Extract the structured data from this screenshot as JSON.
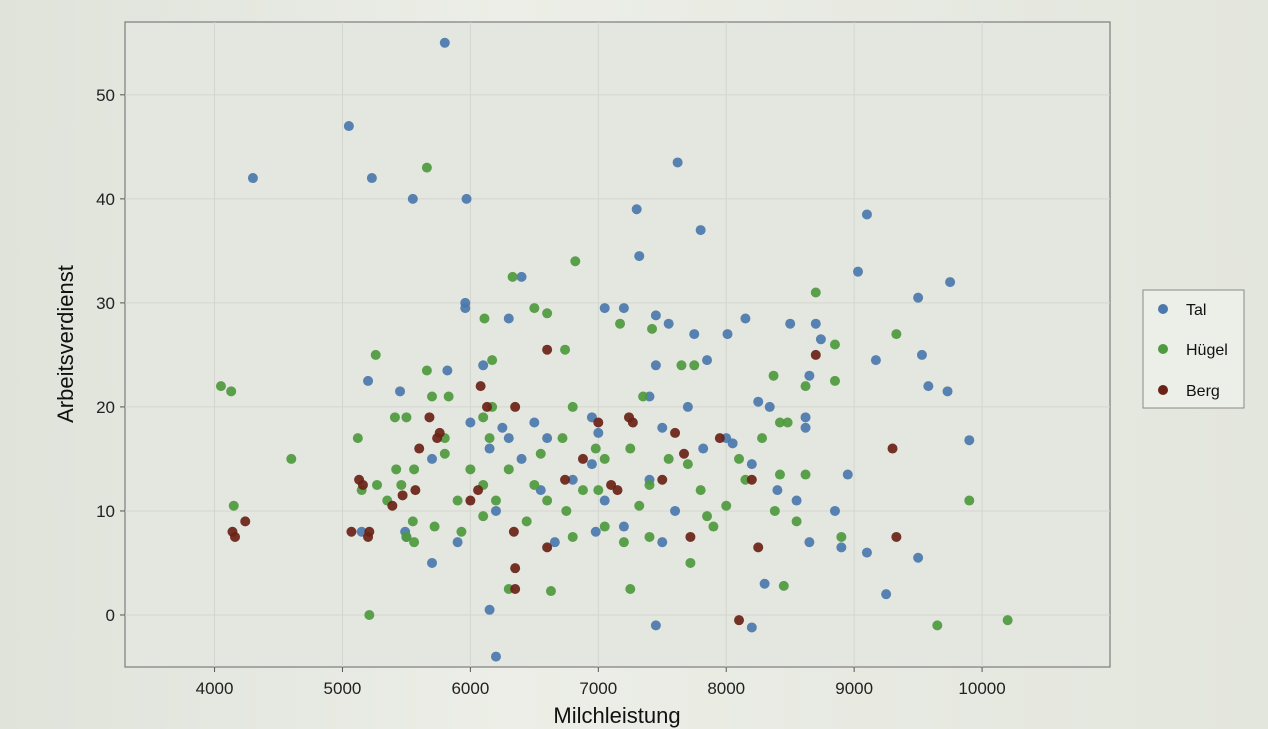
{
  "chart_data": {
    "type": "scatter",
    "title": "",
    "xlabel": "Milchleistung",
    "ylabel": "Arbeitsverdienst",
    "xlim": [
      3300,
      11000
    ],
    "ylim": [
      -5,
      57
    ],
    "x_ticks": [
      "4000",
      "5000",
      "6000",
      "7000",
      "8000",
      "9000",
      "10000"
    ],
    "y_ticks": [
      "0",
      "10",
      "20",
      "30",
      "40",
      "50"
    ],
    "grid": true,
    "legend": {
      "placement": "right",
      "entries": [
        "Tal",
        "Hügel",
        "Berg"
      ]
    },
    "colors": {
      "Tal": "#4b78ad",
      "Hügel": "#4e9a3e",
      "Berg": "#6a2216"
    },
    "series": [
      {
        "name": "Tal",
        "points": [
          [
            5800,
            55
          ],
          [
            5050,
            47
          ],
          [
            4300,
            42
          ],
          [
            5230,
            42
          ],
          [
            7620,
            43.5
          ],
          [
            5550,
            40
          ],
          [
            5970,
            40
          ],
          [
            9100,
            38.5
          ],
          [
            7300,
            39
          ],
          [
            7800,
            37
          ],
          [
            6400,
            32.5
          ],
          [
            7320,
            34.5
          ],
          [
            9030,
            33
          ],
          [
            9750,
            32
          ],
          [
            9500,
            30.5
          ],
          [
            5960,
            30
          ],
          [
            5960,
            29.5
          ],
          [
            7050,
            29.5
          ],
          [
            6300,
            28.5
          ],
          [
            7450,
            28.8
          ],
          [
            7200,
            29.5
          ],
          [
            8150,
            28.5
          ],
          [
            8500,
            28
          ],
          [
            8700,
            28
          ],
          [
            7750,
            27
          ],
          [
            8010,
            27
          ],
          [
            7550,
            28
          ],
          [
            8740,
            26.5
          ],
          [
            9530,
            25
          ],
          [
            9170,
            24.5
          ],
          [
            6100,
            24
          ],
          [
            7450,
            24
          ],
          [
            7850,
            24.5
          ],
          [
            5820,
            23.5
          ],
          [
            5200,
            22.5
          ],
          [
            9580,
            22
          ],
          [
            9730,
            21.5
          ],
          [
            5450,
            21.5
          ],
          [
            8650,
            23
          ],
          [
            8250,
            20.5
          ],
          [
            8340,
            20
          ],
          [
            7400,
            21
          ],
          [
            7700,
            20
          ],
          [
            6950,
            19
          ],
          [
            6500,
            18.5
          ],
          [
            6250,
            18
          ],
          [
            6000,
            18.5
          ],
          [
            8620,
            19
          ],
          [
            8620,
            18
          ],
          [
            7500,
            18
          ],
          [
            8000,
            17
          ],
          [
            7000,
            17.5
          ],
          [
            6300,
            17
          ],
          [
            6600,
            17
          ],
          [
            7820,
            16
          ],
          [
            6150,
            16
          ],
          [
            8050,
            16.5
          ],
          [
            5700,
            15
          ],
          [
            9900,
            16.8
          ],
          [
            6400,
            15
          ],
          [
            6950,
            14.5
          ],
          [
            8200,
            14.5
          ],
          [
            8950,
            13.5
          ],
          [
            6800,
            13
          ],
          [
            7400,
            13
          ],
          [
            8400,
            12
          ],
          [
            6550,
            12
          ],
          [
            6200,
            10
          ],
          [
            7050,
            11
          ],
          [
            8550,
            11
          ],
          [
            7600,
            10
          ],
          [
            8850,
            10
          ],
          [
            6980,
            8
          ],
          [
            5490,
            8
          ],
          [
            5150,
            8
          ],
          [
            7200,
            8.5
          ],
          [
            5900,
            7
          ],
          [
            8650,
            7
          ],
          [
            6660,
            7
          ],
          [
            7500,
            7
          ],
          [
            8900,
            6.5
          ],
          [
            9100,
            6
          ],
          [
            9500,
            5.5
          ],
          [
            5500,
            7.5
          ],
          [
            5700,
            5
          ],
          [
            8300,
            3
          ],
          [
            9250,
            2
          ],
          [
            6150,
            0.5
          ],
          [
            7450,
            -1
          ],
          [
            8200,
            -1.2
          ],
          [
            6200,
            -4
          ]
        ]
      },
      {
        "name": "Hügel",
        "points": [
          [
            5660,
            43
          ],
          [
            6820,
            34
          ],
          [
            8700,
            31
          ],
          [
            6330,
            32.5
          ],
          [
            6110,
            28.5
          ],
          [
            6500,
            29.5
          ],
          [
            6600,
            29
          ],
          [
            7170,
            28
          ],
          [
            7420,
            27.5
          ],
          [
            9330,
            27
          ],
          [
            5260,
            25
          ],
          [
            6170,
            24.5
          ],
          [
            6740,
            25.5
          ],
          [
            8850,
            26
          ],
          [
            4050,
            22
          ],
          [
            4130,
            21.5
          ],
          [
            5660,
            23.5
          ],
          [
            7750,
            24
          ],
          [
            7650,
            24
          ],
          [
            8620,
            22
          ],
          [
            8370,
            23
          ],
          [
            8850,
            22.5
          ],
          [
            5700,
            21
          ],
          [
            5830,
            21
          ],
          [
            6170,
            20
          ],
          [
            5410,
            19
          ],
          [
            5800,
            17
          ],
          [
            5120,
            17
          ],
          [
            5500,
            19
          ],
          [
            6100,
            19
          ],
          [
            6800,
            20
          ],
          [
            7350,
            21
          ],
          [
            8420,
            18.5
          ],
          [
            8480,
            18.5
          ],
          [
            8280,
            17
          ],
          [
            6720,
            17
          ],
          [
            6150,
            17
          ],
          [
            5800,
            15.5
          ],
          [
            4600,
            15
          ],
          [
            6980,
            16
          ],
          [
            7050,
            15
          ],
          [
            6000,
            14
          ],
          [
            6300,
            14
          ],
          [
            6550,
            15.5
          ],
          [
            7250,
            16
          ],
          [
            7700,
            14.5
          ],
          [
            8620,
            13.5
          ],
          [
            8420,
            13.5
          ],
          [
            8150,
            13
          ],
          [
            8100,
            15
          ],
          [
            7550,
            15
          ],
          [
            5560,
            14
          ],
          [
            5270,
            12.5
          ],
          [
            5350,
            11
          ],
          [
            5150,
            12
          ],
          [
            5460,
            12.5
          ],
          [
            5420,
            14
          ],
          [
            6100,
            12.5
          ],
          [
            6500,
            12.5
          ],
          [
            7000,
            12
          ],
          [
            7400,
            12.5
          ],
          [
            7800,
            12
          ],
          [
            5900,
            11
          ],
          [
            6200,
            11
          ],
          [
            6880,
            12
          ],
          [
            8380,
            10
          ],
          [
            4150,
            10.5
          ],
          [
            5550,
            9
          ],
          [
            5720,
            8.5
          ],
          [
            6100,
            9.5
          ],
          [
            6600,
            11
          ],
          [
            7320,
            10.5
          ],
          [
            8000,
            10.5
          ],
          [
            8550,
            9
          ],
          [
            7850,
            9.5
          ],
          [
            5500,
            7.5
          ],
          [
            5560,
            7
          ],
          [
            5930,
            8
          ],
          [
            6440,
            9
          ],
          [
            6750,
            10
          ],
          [
            7050,
            8.5
          ],
          [
            7900,
            8.5
          ],
          [
            8900,
            7.5
          ],
          [
            9900,
            11
          ],
          [
            6800,
            7.5
          ],
          [
            7200,
            7
          ],
          [
            7400,
            7.5
          ],
          [
            7720,
            5
          ],
          [
            6300,
            2.5
          ],
          [
            6630,
            2.3
          ],
          [
            7250,
            2.5
          ],
          [
            8450,
            2.8
          ],
          [
            5210,
            0
          ],
          [
            9650,
            -1
          ],
          [
            10200,
            -0.5
          ]
        ]
      },
      {
        "name": "Berg",
        "points": [
          [
            8700,
            25
          ],
          [
            6600,
            25.5
          ],
          [
            6080,
            22
          ],
          [
            7240,
            19
          ],
          [
            7270,
            18.5
          ],
          [
            7600,
            17.5
          ],
          [
            7950,
            17
          ],
          [
            5740,
            17
          ],
          [
            5760,
            17.5
          ],
          [
            5680,
            19
          ],
          [
            6350,
            20
          ],
          [
            6130,
            20
          ],
          [
            5600,
            16
          ],
          [
            6880,
            15
          ],
          [
            7670,
            15.5
          ],
          [
            9300,
            16
          ],
          [
            6000,
            11
          ],
          [
            6060,
            12
          ],
          [
            6740,
            13
          ],
          [
            7100,
            12.5
          ],
          [
            7150,
            12
          ],
          [
            7500,
            13
          ],
          [
            8200,
            13
          ],
          [
            5130,
            13
          ],
          [
            5160,
            12.5
          ],
          [
            5570,
            12
          ],
          [
            5470,
            11.5
          ],
          [
            5390,
            10.5
          ],
          [
            4240,
            9
          ],
          [
            4140,
            8
          ],
          [
            4160,
            7.5
          ],
          [
            5070,
            8
          ],
          [
            5200,
            7.5
          ],
          [
            5210,
            8
          ],
          [
            6340,
            8
          ],
          [
            6600,
            6.5
          ],
          [
            7720,
            7.5
          ],
          [
            8250,
            6.5
          ],
          [
            9330,
            7.5
          ],
          [
            6350,
            4.5
          ],
          [
            6350,
            2.5
          ],
          [
            8100,
            -0.5
          ],
          [
            7000,
            18.5
          ]
        ]
      }
    ]
  }
}
